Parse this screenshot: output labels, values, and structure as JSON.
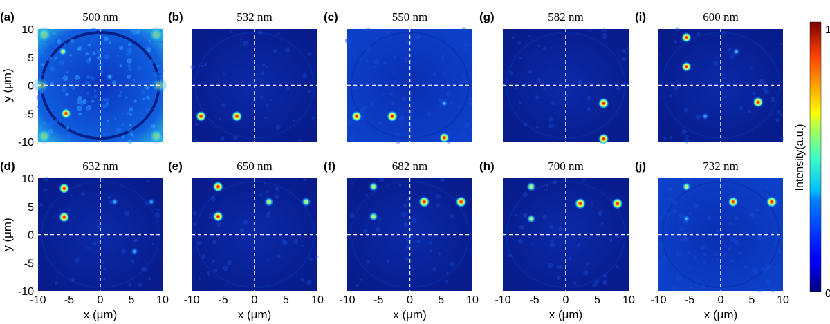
{
  "chart_data": {
    "type": "heatmap",
    "colormap": "jet",
    "panels": [
      {
        "label": "(a)",
        "title": "500 nm",
        "background": "high",
        "spots": [
          {
            "x": -5.5,
            "y": -5,
            "i": 0.85
          },
          {
            "x": 1.5,
            "y": 1.5,
            "i": 0.45
          },
          {
            "x": -6,
            "y": 6,
            "i": 0.5
          }
        ]
      },
      {
        "label": "(b)",
        "title": "532 nm",
        "background": "low",
        "spots": [
          {
            "x": -8.5,
            "y": -5.5,
            "i": 0.9
          },
          {
            "x": -2.8,
            "y": -5.5,
            "i": 0.95
          }
        ]
      },
      {
        "label": "(c)",
        "title": "550 nm",
        "background": "mid",
        "spots": [
          {
            "x": -8.5,
            "y": -5.5,
            "i": 0.9
          },
          {
            "x": -2.8,
            "y": -5.5,
            "i": 0.95
          },
          {
            "x": 5.5,
            "y": -3.2,
            "i": 0.35
          },
          {
            "x": 5.5,
            "y": -9.3,
            "i": 0.8
          }
        ]
      },
      {
        "label": "(g)",
        "title": "582 nm",
        "background": "low",
        "spots": [
          {
            "x": 6,
            "y": -3.2,
            "i": 0.95
          },
          {
            "x": 6,
            "y": -9.5,
            "i": 0.9
          }
        ]
      },
      {
        "label": "(i)",
        "title": "600 nm",
        "background": "low",
        "spots": [
          {
            "x": -5.5,
            "y": 8.5,
            "i": 0.8
          },
          {
            "x": -5.5,
            "y": 3.3,
            "i": 0.8
          },
          {
            "x": 6,
            "y": -3,
            "i": 0.9
          },
          {
            "x": 2.5,
            "y": 6,
            "i": 0.35
          },
          {
            "x": -2.5,
            "y": -5.5,
            "i": 0.35
          }
        ]
      },
      {
        "label": "(d)",
        "title": "632 nm",
        "background": "low",
        "spots": [
          {
            "x": -5.8,
            "y": 8.2,
            "i": 0.9
          },
          {
            "x": -5.8,
            "y": 3.1,
            "i": 0.9
          },
          {
            "x": 2.3,
            "y": 5.8,
            "i": 0.45
          },
          {
            "x": 8.2,
            "y": 5.8,
            "i": 0.35
          },
          {
            "x": 5.5,
            "y": -3,
            "i": 0.4
          }
        ]
      },
      {
        "label": "(e)",
        "title": "650 nm",
        "background": "low",
        "spots": [
          {
            "x": -5.8,
            "y": 8.5,
            "i": 0.9
          },
          {
            "x": -5.8,
            "y": 3.2,
            "i": 0.9
          },
          {
            "x": 2.3,
            "y": 5.8,
            "i": 0.75
          },
          {
            "x": 8.2,
            "y": 5.8,
            "i": 0.75
          }
        ]
      },
      {
        "label": "(f)",
        "title": "682 nm",
        "background": "low",
        "spots": [
          {
            "x": -5.8,
            "y": 8.5,
            "i": 0.7
          },
          {
            "x": -5.8,
            "y": 3.2,
            "i": 0.7
          },
          {
            "x": 2.3,
            "y": 5.8,
            "i": 1.0
          },
          {
            "x": 8.2,
            "y": 5.8,
            "i": 1.0
          }
        ]
      },
      {
        "label": "(h)",
        "title": "700 nm",
        "background": "low",
        "spots": [
          {
            "x": -5.5,
            "y": 8.5,
            "i": 0.75
          },
          {
            "x": -5.5,
            "y": 2.8,
            "i": 0.6
          },
          {
            "x": 2.3,
            "y": 5.5,
            "i": 1.0
          },
          {
            "x": 8.2,
            "y": 5.5,
            "i": 1.0
          }
        ]
      },
      {
        "label": "(j)",
        "title": "732 nm",
        "background": "mid",
        "spots": [
          {
            "x": -5.5,
            "y": 8.5,
            "i": 0.6
          },
          {
            "x": -5.5,
            "y": 2.8,
            "i": 0.4
          },
          {
            "x": 2,
            "y": 5.8,
            "i": 0.85
          },
          {
            "x": 8.2,
            "y": 5.8,
            "i": 1.0
          }
        ]
      }
    ],
    "xlabel": "x (μm)",
    "ylabel": "y (μm)",
    "xlim": [
      -10,
      10
    ],
    "ylim": [
      -10,
      10
    ],
    "xticks": [
      -10,
      -5,
      0,
      5,
      10
    ],
    "yticks": [
      10,
      5,
      0,
      -5,
      -10
    ],
    "colorbar": {
      "label": "Intensity(a.u.)",
      "min_label": "0",
      "max_label": "1"
    }
  }
}
